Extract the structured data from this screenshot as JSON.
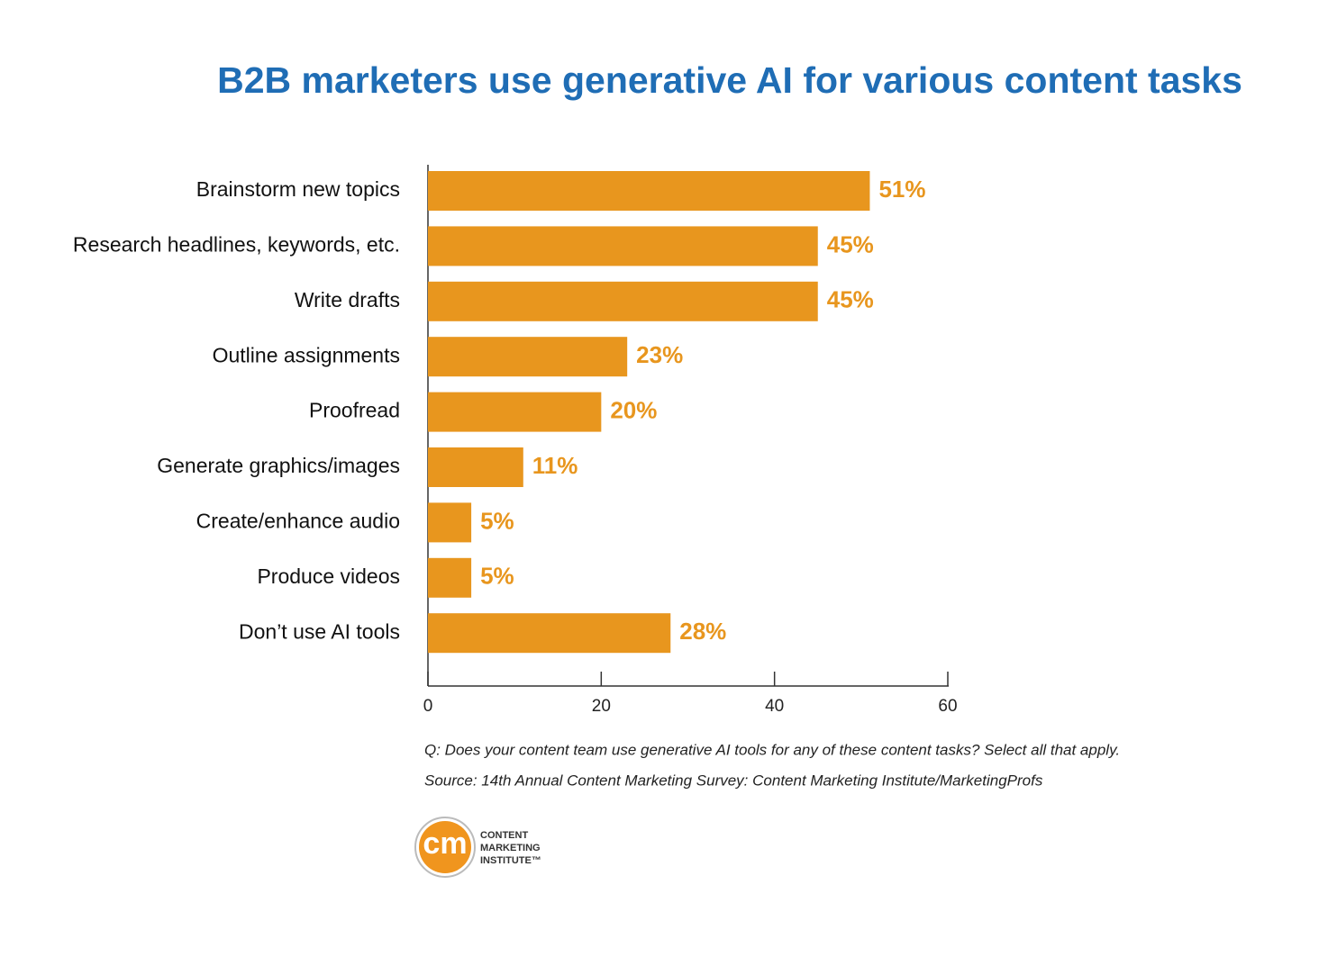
{
  "chart_data": {
    "type": "bar",
    "orientation": "horizontal",
    "title": "B2B marketers use generative AI for various content tasks",
    "categories": [
      "Brainstorm new topics",
      "Research headlines, keywords, etc.",
      "Write drafts",
      "Outline assignments",
      "Proofread",
      "Generate graphics/images",
      "Create/enhance audio",
      "Produce videos",
      "Don’t use AI tools"
    ],
    "values": [
      51,
      45,
      45,
      23,
      20,
      11,
      5,
      5,
      28
    ],
    "value_labels": [
      "51%",
      "45%",
      "45%",
      "23%",
      "20%",
      "11%",
      "5%",
      "5%",
      "28%"
    ],
    "color": "#e8961e",
    "xlim": [
      0,
      60
    ],
    "xticks": [
      0,
      20,
      40,
      60
    ],
    "grid": false,
    "notes": [
      "Q: Does your content team use generative AI tools for any of these content tasks? Select all that apply.",
      "Source: 14th Annual Content Marketing Survey: Content Marketing Institute/MarketingProfs"
    ]
  },
  "logo": {
    "mark": "cm",
    "lines": [
      "CONTENT",
      "MARKETING",
      "INSTITUTE™"
    ]
  }
}
